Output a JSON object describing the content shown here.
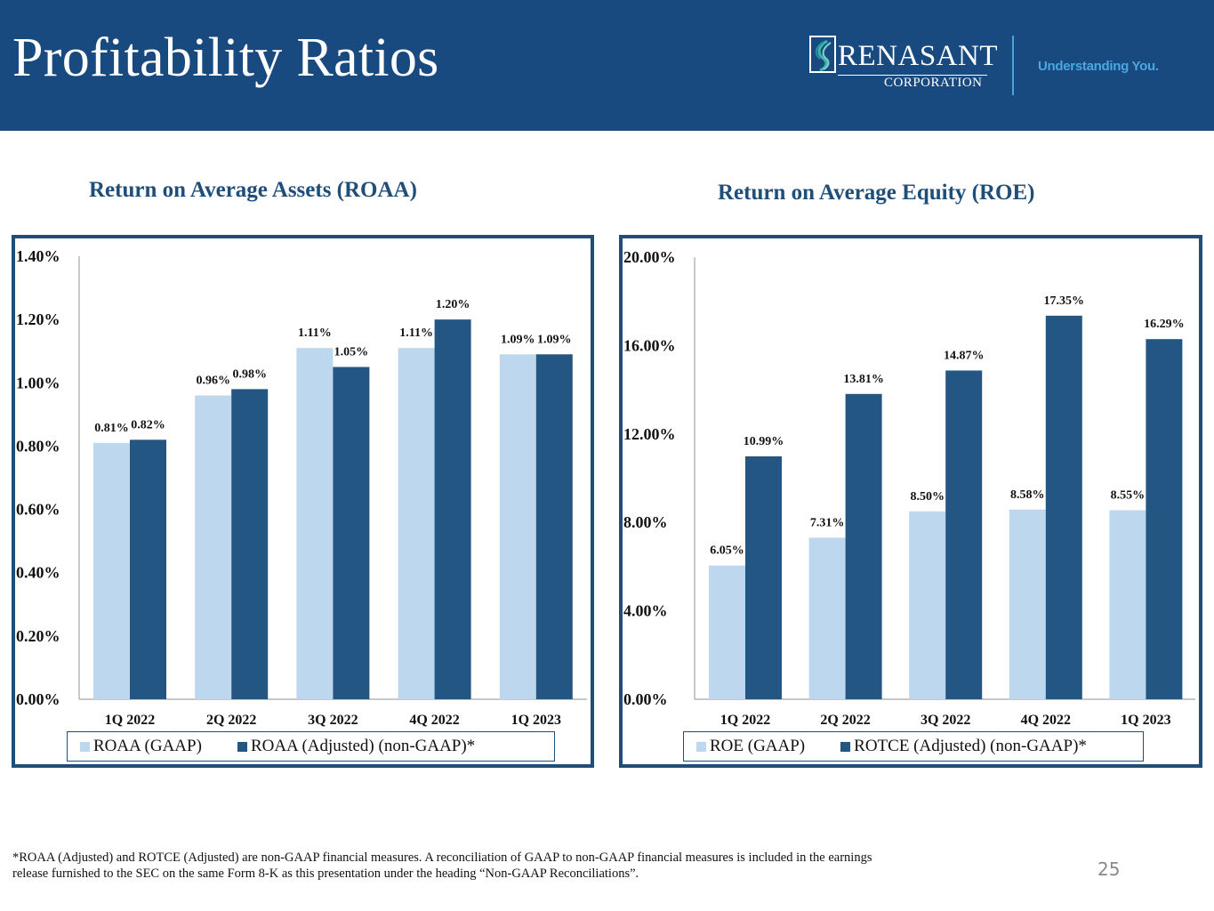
{
  "header": {
    "title": "Profitability Ratios",
    "logo_name": "RENASANT",
    "logo_sub": "CORPORATION",
    "tagline": "Understanding You."
  },
  "colors": {
    "header_bg": "#184a80",
    "accent": "#1f4e79",
    "series_light": "#bdd7ee",
    "series_dark": "#245683",
    "tagline": "#4aa8e0"
  },
  "chart_data": [
    {
      "type": "bar",
      "title": "Return on Average Assets (ROAA)",
      "categories": [
        "1Q 2022",
        "2Q 2022",
        "3Q 2022",
        "4Q 2022",
        "1Q 2023"
      ],
      "series": [
        {
          "name": "ROAA (GAAP)",
          "values": [
            0.81,
            0.96,
            1.11,
            1.11,
            1.09
          ],
          "labels": [
            "0.81%",
            "0.96%",
            "1.11%",
            "1.11%",
            "1.09%"
          ]
        },
        {
          "name": "ROAA (Adjusted) (non-GAAP)*",
          "values": [
            0.82,
            0.98,
            1.05,
            1.2,
            1.09
          ],
          "labels": [
            "0.82%",
            "0.98%",
            "1.05%",
            "1.20%",
            "1.09%"
          ]
        }
      ],
      "yticks": [
        "0.00%",
        "0.20%",
        "0.40%",
        "0.60%",
        "0.80%",
        "1.00%",
        "1.20%",
        "1.40%"
      ],
      "ytick_values": [
        0,
        0.2,
        0.4,
        0.6,
        0.8,
        1.0,
        1.2,
        1.4
      ],
      "ylim": [
        0,
        1.4
      ],
      "xlabel": "",
      "ylabel": "",
      "grid": false,
      "legend": "bottom"
    },
    {
      "type": "bar",
      "title": "Return on Average Equity (ROE)",
      "categories": [
        "1Q 2022",
        "2Q 2022",
        "3Q 2022",
        "4Q 2022",
        "1Q 2023"
      ],
      "series": [
        {
          "name": "ROE (GAAP)",
          "values": [
            6.05,
            7.31,
            8.5,
            8.58,
            8.55
          ],
          "labels": [
            "6.05%",
            "7.31%",
            "8.50%",
            "8.58%",
            "8.55%"
          ]
        },
        {
          "name": "ROTCE (Adjusted) (non-GAAP)*",
          "values": [
            10.99,
            13.81,
            14.87,
            17.35,
            16.29
          ],
          "labels": [
            "10.99%",
            "13.81%",
            "14.87%",
            "17.35%",
            "16.29%"
          ]
        }
      ],
      "yticks": [
        "0.00%",
        "4.00%",
        "8.00%",
        "12.00%",
        "16.00%",
        "20.00%"
      ],
      "ytick_values": [
        0,
        4,
        8,
        12,
        16,
        20
      ],
      "ylim": [
        0,
        20
      ],
      "xlabel": "",
      "ylabel": "",
      "grid": false,
      "legend": "bottom"
    }
  ],
  "footnote": {
    "line1": "*ROAA (Adjusted) and ROTCE (Adjusted) are non-GAAP financial measures. A reconciliation of GAAP to non-GAAP financial measures is included in the earnings",
    "line2": "release furnished to the SEC on the same Form 8-K as this presentation under the heading “Non-GAAP Reconciliations”."
  },
  "page_number": "25"
}
